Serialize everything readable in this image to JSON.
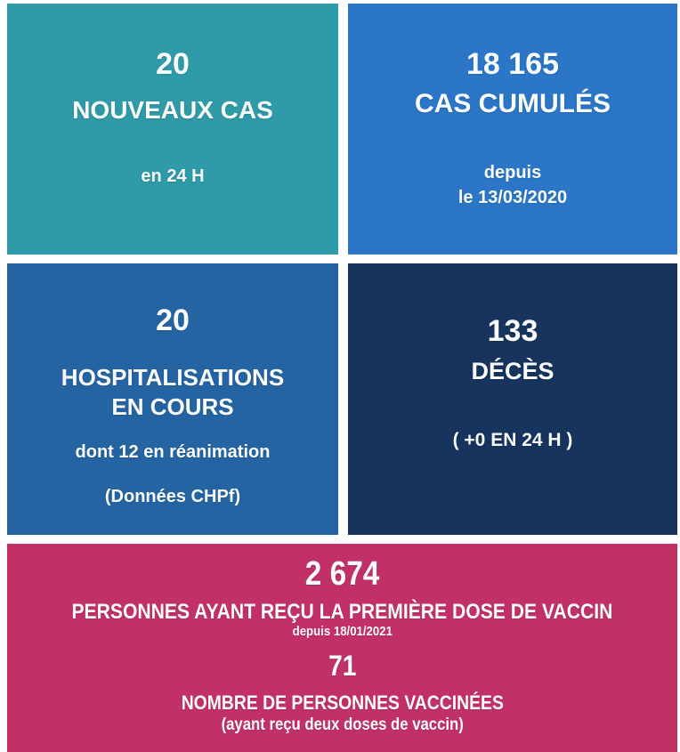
{
  "chart_data": {
    "type": "table",
    "title": "",
    "metrics": [
      {
        "label": "NOUVEAUX CAS",
        "value": 20,
        "period": "en 24 H"
      },
      {
        "label": "CAS CUMULÉS",
        "value": 18165,
        "period": "depuis le 13/03/2020"
      },
      {
        "label": "HOSPITALISATIONS EN COURS",
        "value": 20,
        "note": "dont 12 en réanimation (Données CHPf)"
      },
      {
        "label": "DÉCÈS",
        "value": 133,
        "note": "( +0 EN 24 H )"
      },
      {
        "label": "PERSONNES AYANT REÇU LA PREMIÈRE DOSE DE VACCIN",
        "value": 2674,
        "period": "depuis 18/01/2021"
      },
      {
        "label": "NOMBRE DE PERSONNES VACCINÉES (ayant reçu deux doses de vaccin)",
        "value": 71
      }
    ]
  },
  "cards": {
    "new_cases": {
      "value": "20",
      "label": "NOUVEAUX CAS",
      "sublabel": "en 24 H"
    },
    "cumulative_cases": {
      "value": "18 165",
      "label": "CAS CUMULÉS",
      "sublabel_line1": "depuis",
      "sublabel_line2": "le 13/03/2020"
    },
    "hospitalizations": {
      "value": "20",
      "label_line1": "HOSPITALISATIONS",
      "label_line2": "EN COURS",
      "sublabel": "dont 12 en réanimation",
      "note": "(Données CHPf)"
    },
    "deaths": {
      "value": "133",
      "label": "DÉCÈS",
      "sublabel": "( +0 EN 24 H )"
    },
    "vaccination": {
      "first_dose_value": "2 674",
      "first_dose_label": "PERSONNES AYANT REÇU LA PREMIÈRE DOSE DE VACCIN",
      "first_dose_since": "depuis 18/01/2021",
      "fully_vaccinated_value": "71",
      "fully_vaccinated_label": "NOMBRE DE PERSONNES VACCINÉES",
      "fully_vaccinated_note": "(ayant reçu deux doses de vaccin)"
    }
  },
  "colors": {
    "background": "#FFFFFF",
    "text": "#FAFCFC",
    "new_cases_bg": "#2F9AA8",
    "cumulative_cases_bg": "#2B76C6",
    "hospitalizations_bg": "#2564A3",
    "deaths_bg": "#16345E",
    "vaccination_bg": "#C23166"
  }
}
